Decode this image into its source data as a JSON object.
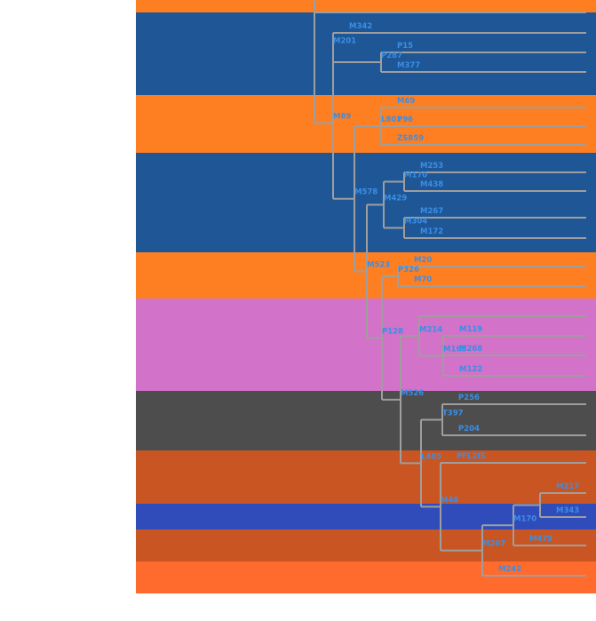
{
  "colors": {
    "background": "#ffffff",
    "branch": "#9e9e9e",
    "label": "#3a8ee6",
    "band_orange": "#fe7f22",
    "band_blue": "#1f5796",
    "band_pink": "#d272c8",
    "band_gray": "#4d4d4d",
    "band_rust": "#c95622",
    "band_indigo": "#304cbb",
    "band_light_orange": "#ff6b2d"
  },
  "tree": {
    "bands": [
      {
        "color": "band_orange"
      },
      {
        "color": "band_blue"
      },
      {
        "color": "band_orange"
      },
      {
        "color": "band_blue"
      },
      {
        "color": "band_orange"
      },
      {
        "color": "band_pink"
      },
      {
        "color": "band_gray"
      },
      {
        "color": "band_rust"
      },
      {
        "color": "band_indigo"
      },
      {
        "color": "band_rust"
      },
      {
        "color": "band_light_orange"
      }
    ],
    "leaf_labels": [
      "M342",
      "P15",
      "M377",
      "M69",
      "P96",
      "ZS859",
      "M253",
      "M438",
      "M267",
      "M172",
      "M20",
      "M70",
      "M119",
      "M268",
      "M122",
      "P256",
      "P204",
      "PFL2IS",
      "M217",
      "M343",
      "M479",
      "M242"
    ],
    "internal_labels": [
      "M201",
      "P287",
      "M89",
      "L801",
      "M578",
      "M170",
      "M429",
      "M304",
      "M523",
      "P326",
      "P128",
      "M291",
      "M214",
      "M165",
      "M526",
      "T397",
      "L405",
      "M170",
      "M207",
      "P299",
      "M48"
    ]
  }
}
